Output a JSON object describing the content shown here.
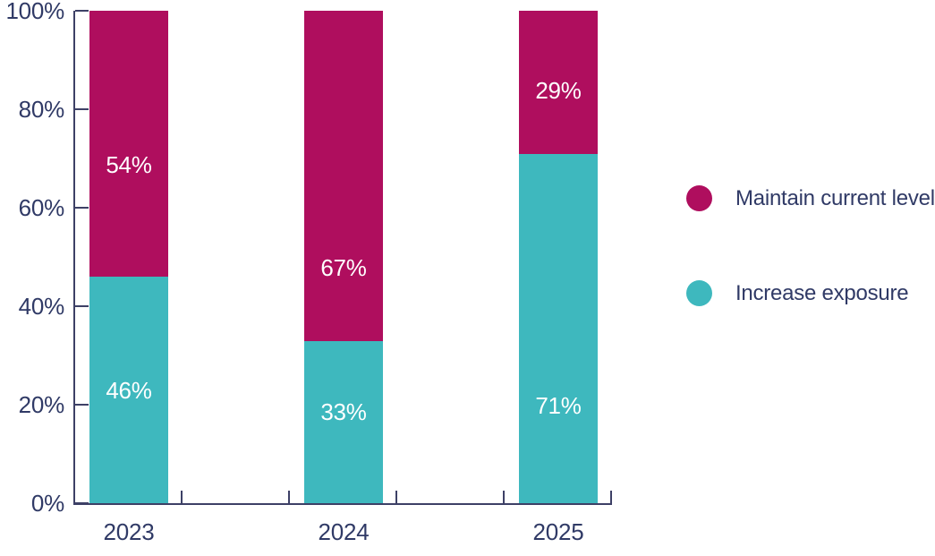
{
  "colors": {
    "text": "#303A66",
    "axis": "#3D4066",
    "background": "#FFFFFF",
    "bar_label": "#FFFFFF",
    "maintain": "#AF0E5E",
    "increase": "#3EB8BE"
  },
  "chart_data": {
    "type": "bar",
    "stacked": true,
    "title": "",
    "categories": [
      "2023",
      "2024",
      "2025"
    ],
    "series": [
      {
        "name": "Increase exposure",
        "color": "#3EB8BE",
        "values": [
          46,
          33,
          71
        ],
        "labels": [
          "46%",
          "33%",
          "71%"
        ],
        "label_frac": [
          0.5,
          0.44,
          0.72
        ]
      },
      {
        "name": "Maintain current level",
        "color": "#AF0E5E",
        "values": [
          54,
          67,
          29
        ],
        "labels": [
          "54%",
          "67%",
          "29%"
        ],
        "label_frac": [
          0.58,
          0.78,
          0.56
        ]
      }
    ],
    "y_axis": {
      "min": 0,
      "max": 100,
      "ticks": [
        "0%",
        "20%",
        "40%",
        "60%",
        "80%",
        "100%"
      ]
    },
    "x_axis": {
      "slot_ticks": 5
    },
    "bar_labels_inside": true,
    "grid": false,
    "legend": {
      "position": "right",
      "items": [
        {
          "label": "Maintain current level",
          "color": "#AF0E5E"
        },
        {
          "label": "Increase exposure",
          "color": "#3EB8BE"
        }
      ]
    }
  }
}
